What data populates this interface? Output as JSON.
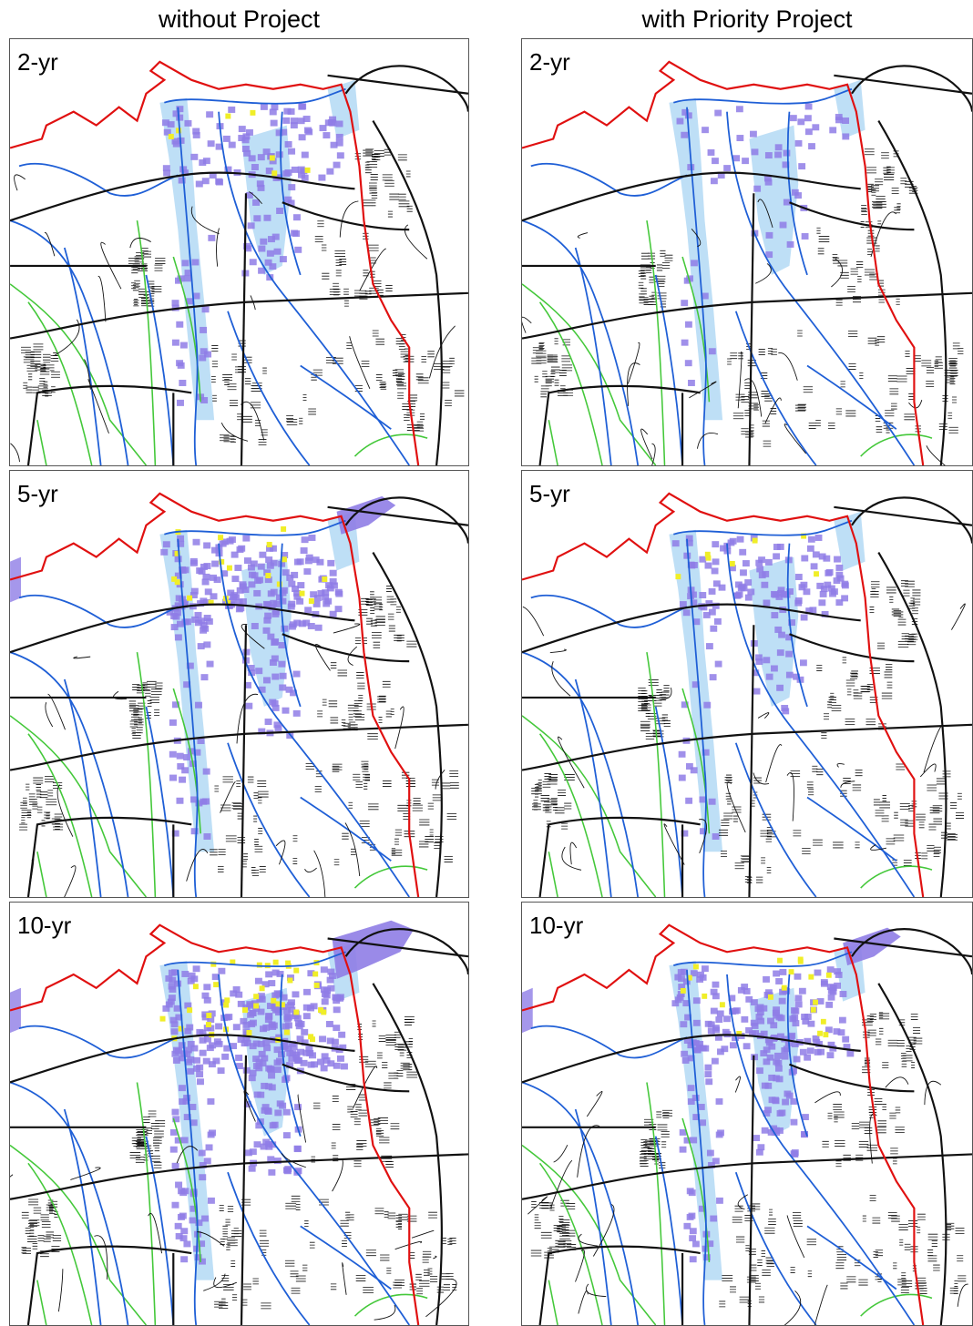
{
  "columns": {
    "left": "without Project",
    "right": "with Priority Project"
  },
  "panels": [
    {
      "label": "2-yr",
      "scenario": "without Project",
      "intensity": 1
    },
    {
      "label": "2-yr",
      "scenario": "with Priority Project",
      "intensity": 0
    },
    {
      "label": "5-yr",
      "scenario": "without Project",
      "intensity": 2
    },
    {
      "label": "5-yr",
      "scenario": "with Priority Project",
      "intensity": 1
    },
    {
      "label": "10-yr",
      "scenario": "without Project",
      "intensity": 3
    },
    {
      "label": "10-yr",
      "scenario": "with Priority Project",
      "intensity": 2
    }
  ],
  "colors": {
    "boundary": "#e01010",
    "river": "#1f5fd6",
    "tributary": "#44c83a",
    "road": "#111111",
    "flood_shallow": "#b7dcf5",
    "flood_medium": "#8f7de6",
    "flood_deep": "#f0ee28"
  }
}
